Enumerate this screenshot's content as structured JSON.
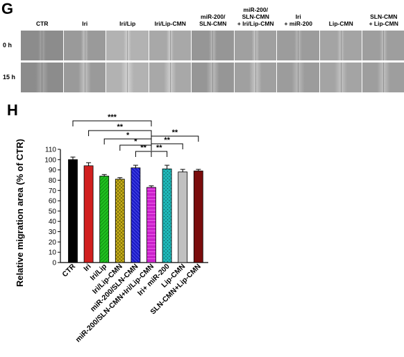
{
  "panel_g": {
    "letter": "G",
    "columns": [
      "CTR",
      "Iri",
      "Iri/Lip",
      "Iri/Lip-CMN",
      "miR-200/\nSLN-CMN",
      "miR-200/\nSLN-CMN\n+ Iri/Lip-CMN",
      "Iri\n+ miR-200",
      "Lip-CMN",
      "SLN-CMN\n+ Lip-CMN"
    ],
    "rows": [
      "0 h",
      "15 h"
    ]
  },
  "panel_h": {
    "letter": "H"
  },
  "chart_data": {
    "type": "bar",
    "title": "",
    "xlabel": "",
    "ylabel": "Relative migration area (% of CTR)",
    "ylim": [
      0,
      110
    ],
    "yticks": [
      0,
      10,
      20,
      30,
      40,
      50,
      60,
      70,
      80,
      90,
      100,
      110
    ],
    "categories": [
      "CTR",
      "Iri",
      "Iri/Lip",
      "Iri/Lip-CMN",
      "miR-200/SLN-CMN",
      "miR-200/SLN-CMN+Iri/Lip-CMN",
      "Iri+ miR-200",
      "Lip-CMN",
      "SLN-CMN+Lip-CMN"
    ],
    "values": [
      100,
      94,
      84,
      81,
      92,
      73,
      91,
      88,
      89
    ],
    "errors": [
      2.5,
      3,
      1.5,
      1.5,
      2.5,
      1.5,
      3.5,
      2.5,
      1.5
    ],
    "colors": [
      "#000000",
      "#d11f1f",
      "#1fbf1f",
      "#c9b11a",
      "#1e1ec8",
      "#cc22cc",
      "#1fb8b8",
      "#c0c0c0",
      "#7a0c0c"
    ],
    "significance": [
      {
        "from": "CTR",
        "to": "miR-200/SLN-CMN+Iri/Lip-CMN",
        "label": "***"
      },
      {
        "from": "Iri",
        "to": "miR-200/SLN-CMN+Iri/Lip-CMN",
        "label": "**"
      },
      {
        "from": "Iri/Lip",
        "to": "miR-200/SLN-CMN+Iri/Lip-CMN",
        "label": "*"
      },
      {
        "from": "Iri/Lip-CMN",
        "to": "miR-200/SLN-CMN+Iri/Lip-CMN",
        "label": "*"
      },
      {
        "from": "miR-200/SLN-CMN",
        "to": "miR-200/SLN-CMN+Iri/Lip-CMN",
        "label": "**"
      },
      {
        "from": "miR-200/SLN-CMN+Iri/Lip-CMN",
        "to": "Iri+ miR-200",
        "label": "**"
      },
      {
        "from": "miR-200/SLN-CMN+Iri/Lip-CMN",
        "to": "Lip-CMN",
        "label": "**"
      },
      {
        "from": "miR-200/SLN-CMN+Iri/Lip-CMN",
        "to": "SLN-CMN+Lip-CMN",
        "label": "**"
      }
    ]
  }
}
